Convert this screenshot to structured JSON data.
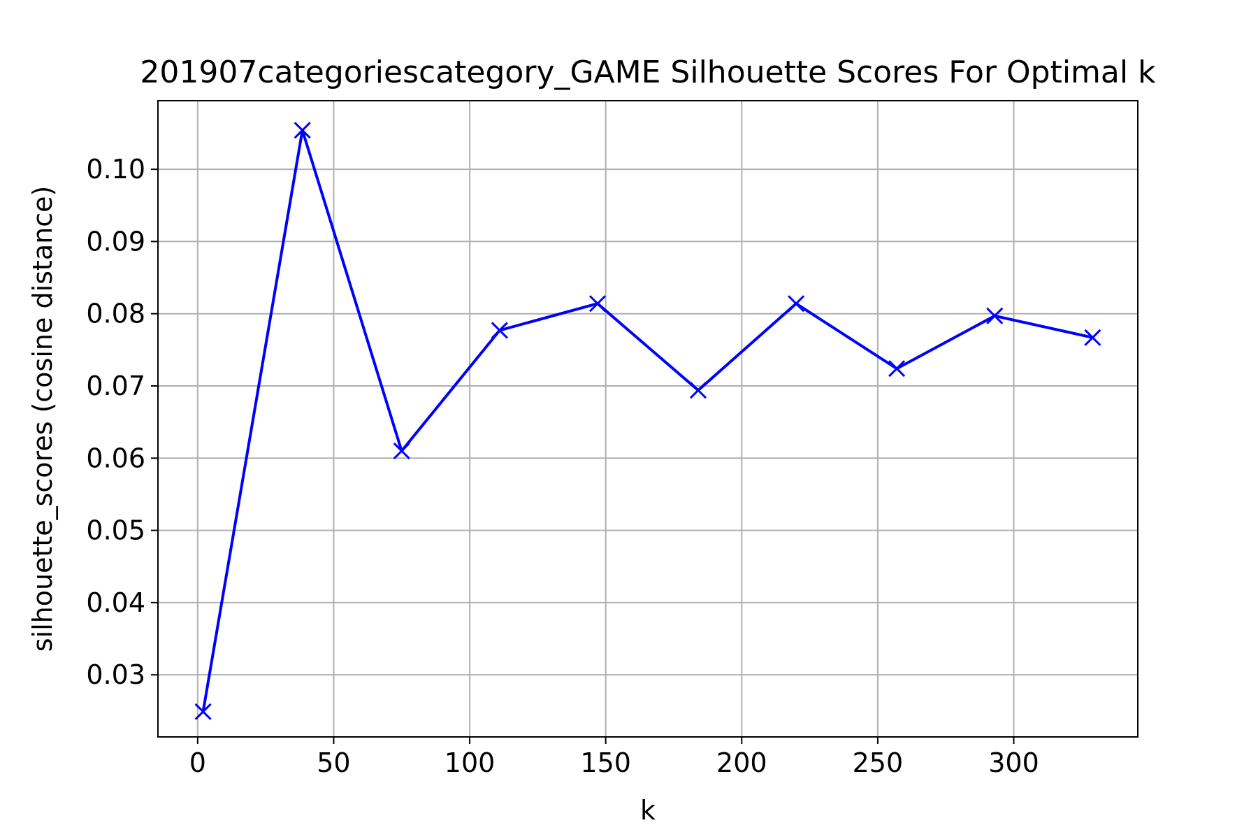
{
  "chart_data": {
    "type": "line",
    "title": "201907categoriescategory_GAME Silhouette Scores For Optimal k",
    "xlabel": "k",
    "ylabel": "silhouette_scores (cosine distance)",
    "xlim": [
      -14.6,
      345.6
    ],
    "ylim": [
      0.0214,
      0.1095
    ],
    "xticks": [
      0,
      50,
      100,
      150,
      200,
      250,
      300
    ],
    "xtick_labels": [
      "0",
      "50",
      "100",
      "150",
      "200",
      "250",
      "300"
    ],
    "yticks": [
      0.03,
      0.04,
      0.05,
      0.06,
      0.07,
      0.08,
      0.09,
      0.1
    ],
    "ytick_labels": [
      "0.03",
      "0.04",
      "0.05",
      "0.06",
      "0.07",
      "0.08",
      "0.09",
      "0.10"
    ],
    "grid": true,
    "legend": "none",
    "series": [
      {
        "color": "#0000ff",
        "marker": "x",
        "x": [
          2,
          38.5,
          75,
          111,
          147,
          184,
          220,
          257,
          293,
          329
        ],
        "y": [
          0.0249,
          0.1054,
          0.061,
          0.0777,
          0.0814,
          0.0694,
          0.0814,
          0.0724,
          0.0797,
          0.0767
        ]
      }
    ],
    "colors": {
      "grid": "#b0b0b0",
      "axes": "#000000",
      "background": "#ffffff"
    }
  }
}
